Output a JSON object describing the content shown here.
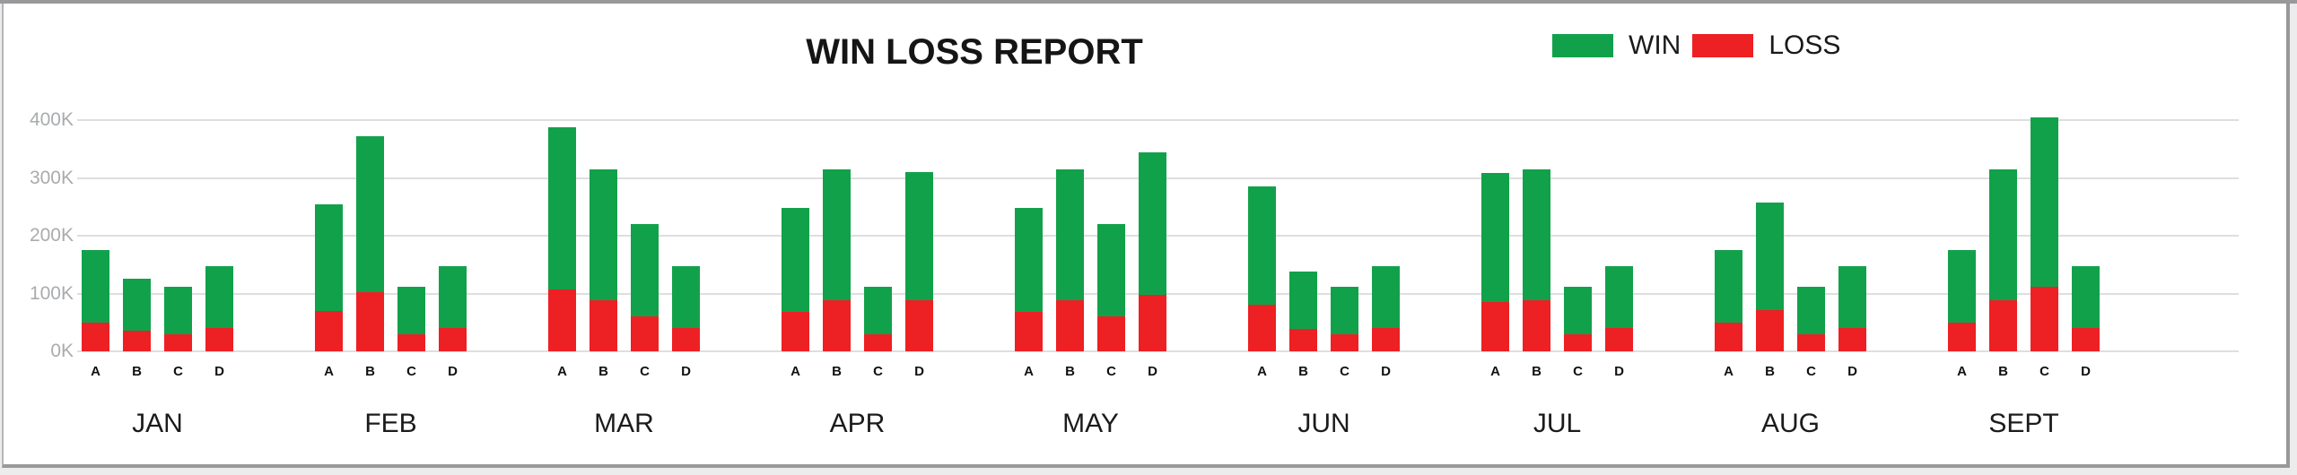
{
  "style": {
    "win_color": "#12a14b",
    "loss_color": "#ed2024",
    "grid_color": "#dedede",
    "axis_label_color": "#a9abad",
    "window_border_color": "#97999b",
    "page_background": "#ececec",
    "card_background": "#ffffff"
  },
  "chart_data": {
    "type": "bar",
    "stacked": true,
    "title": "WIN LOSS REPORT",
    "value_unit": "K",
    "ylim": [
      0,
      420
    ],
    "yticks": [
      "0K",
      "100K",
      "200K",
      "300K",
      "400K"
    ],
    "ytick_values": [
      0,
      100,
      200,
      300,
      400
    ],
    "grid": "horizontal",
    "legend_position": "top-right",
    "sub_categories": [
      "A",
      "B",
      "C",
      "D"
    ],
    "series": [
      {
        "name": "WIN",
        "color": "#12a14b"
      },
      {
        "name": "LOSS",
        "color": "#ed2024"
      }
    ],
    "months": [
      {
        "label": "JAN",
        "bars": [
          {
            "label": "A",
            "win": 125,
            "loss": 50,
            "total": 175
          },
          {
            "label": "B",
            "win": 90,
            "loss": 35,
            "total": 125
          },
          {
            "label": "C",
            "win": 82,
            "loss": 30,
            "total": 112
          },
          {
            "label": "D",
            "win": 107,
            "loss": 40,
            "total": 147
          }
        ]
      },
      {
        "label": "FEB",
        "bars": [
          {
            "label": "A",
            "win": 185,
            "loss": 70,
            "total": 255
          },
          {
            "label": "B",
            "win": 270,
            "loss": 103,
            "total": 373
          },
          {
            "label": "C",
            "win": 82,
            "loss": 30,
            "total": 112
          },
          {
            "label": "D",
            "win": 107,
            "loss": 40,
            "total": 147
          }
        ]
      },
      {
        "label": "MAR",
        "bars": [
          {
            "label": "A",
            "win": 281,
            "loss": 107,
            "total": 388
          },
          {
            "label": "B",
            "win": 227,
            "loss": 88,
            "total": 315
          },
          {
            "label": "C",
            "win": 160,
            "loss": 60,
            "total": 220
          },
          {
            "label": "D",
            "win": 107,
            "loss": 40,
            "total": 147
          }
        ]
      },
      {
        "label": "APR",
        "bars": [
          {
            "label": "A",
            "win": 180,
            "loss": 68,
            "total": 248
          },
          {
            "label": "B",
            "win": 227,
            "loss": 88,
            "total": 315
          },
          {
            "label": "C",
            "win": 82,
            "loss": 30,
            "total": 112
          },
          {
            "label": "D",
            "win": 221,
            "loss": 88,
            "total": 309
          }
        ]
      },
      {
        "label": "MAY",
        "bars": [
          {
            "label": "A",
            "win": 180,
            "loss": 68,
            "total": 248
          },
          {
            "label": "B",
            "win": 227,
            "loss": 88,
            "total": 315
          },
          {
            "label": "C",
            "win": 160,
            "loss": 60,
            "total": 220
          },
          {
            "label": "D",
            "win": 247,
            "loss": 97,
            "total": 344
          }
        ]
      },
      {
        "label": "JUN",
        "bars": [
          {
            "label": "A",
            "win": 205,
            "loss": 80,
            "total": 285
          },
          {
            "label": "B",
            "win": 99,
            "loss": 39,
            "total": 138
          },
          {
            "label": "C",
            "win": 82,
            "loss": 30,
            "total": 112
          },
          {
            "label": "D",
            "win": 107,
            "loss": 40,
            "total": 147
          }
        ]
      },
      {
        "label": "JUL",
        "bars": [
          {
            "label": "A",
            "win": 223,
            "loss": 86,
            "total": 309
          },
          {
            "label": "B",
            "win": 227,
            "loss": 88,
            "total": 315
          },
          {
            "label": "C",
            "win": 82,
            "loss": 30,
            "total": 112
          },
          {
            "label": "D",
            "win": 107,
            "loss": 40,
            "total": 147
          }
        ]
      },
      {
        "label": "AUG",
        "bars": [
          {
            "label": "A",
            "win": 125,
            "loss": 50,
            "total": 175
          },
          {
            "label": "B",
            "win": 186,
            "loss": 71,
            "total": 257
          },
          {
            "label": "C",
            "win": 82,
            "loss": 30,
            "total": 112
          },
          {
            "label": "D",
            "win": 107,
            "loss": 40,
            "total": 147
          }
        ]
      },
      {
        "label": "SEPT",
        "bars": [
          {
            "label": "A",
            "win": 125,
            "loss": 50,
            "total": 175
          },
          {
            "label": "B",
            "win": 227,
            "loss": 88,
            "total": 315
          },
          {
            "label": "C",
            "win": 293,
            "loss": 112,
            "total": 405
          },
          {
            "label": "D",
            "win": 107,
            "loss": 40,
            "total": 147
          }
        ]
      }
    ]
  }
}
